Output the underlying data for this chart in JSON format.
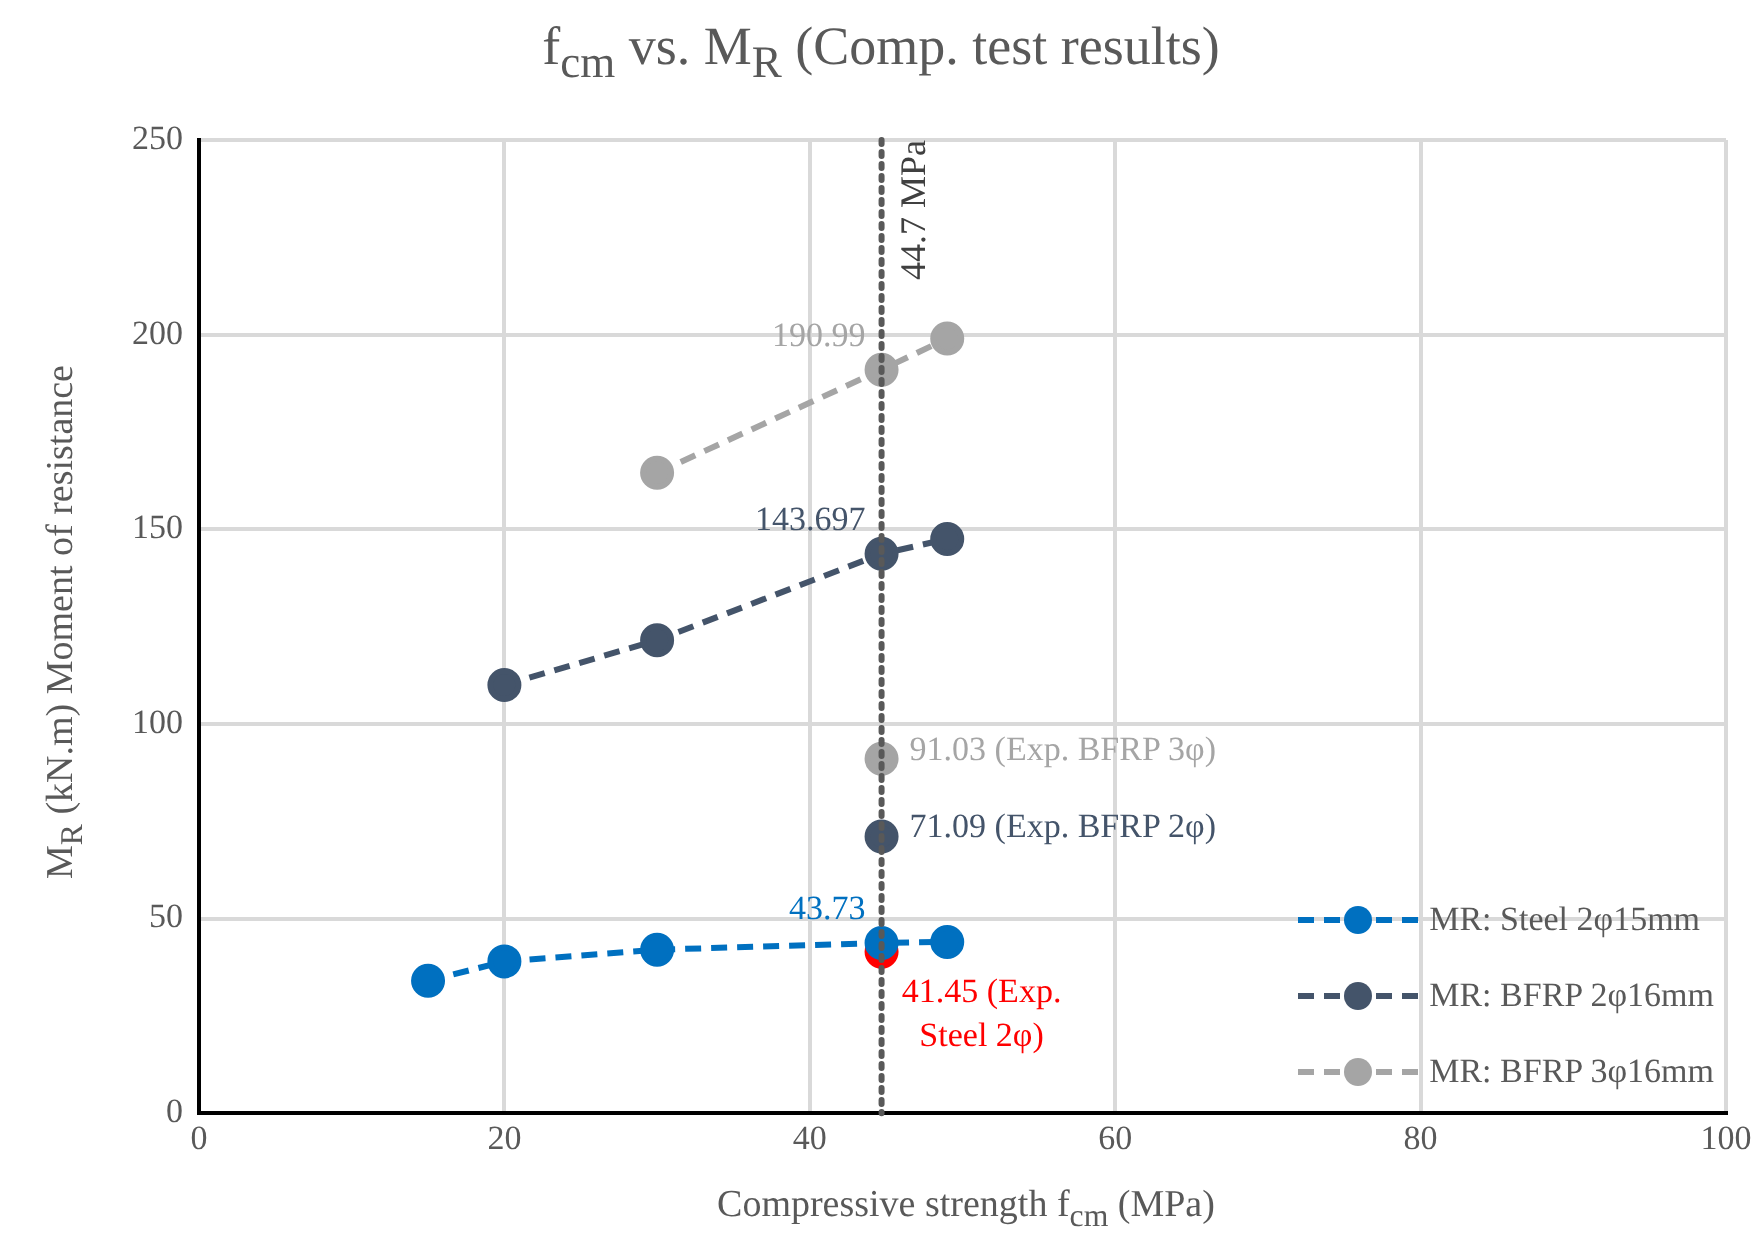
{
  "chart_data": {
    "type": "line",
    "title": "f$_{cm}$ vs. M$_{R}$ (Comp. test results)",
    "xlabel": "Compressive strength f$_{cm}$ (MPa)",
    "ylabel": "M$_{R}$ (kN.m) Moment of resistance",
    "xlim": [
      0,
      100
    ],
    "xticks": [
      0,
      20,
      40,
      60,
      80,
      100
    ],
    "ylim": [
      0,
      250
    ],
    "yticks": [
      0,
      50,
      100,
      150,
      200,
      250
    ],
    "grid": true,
    "legend": "bottom right",
    "marker": "circle",
    "line_style": "dashed",
    "series": [
      {
        "name": "MR: Steel 2φ15mm",
        "color": "#0070c0",
        "x": [
          15,
          20,
          30,
          44.7,
          49
        ],
        "values": [
          34,
          39,
          42,
          43.73,
          44
        ],
        "value_labels": [
          null,
          null,
          null,
          "43.73",
          null
        ]
      },
      {
        "name": "MR: BFRP 2φ16mm",
        "color": "#44546a",
        "x": [
          20,
          30,
          44.7,
          49
        ],
        "values": [
          110,
          121.5,
          143.697,
          147.5
        ],
        "value_labels": [
          null,
          null,
          "143.697",
          null
        ]
      },
      {
        "name": "MR: BFRP 3φ16mm",
        "color": "#a5a5a5",
        "x": [
          30,
          44.7,
          49
        ],
        "values": [
          164.5,
          190.99,
          199
        ],
        "value_labels": [
          null,
          "190.99",
          null
        ]
      },
      {
        "type": "scatter",
        "color": "#ff0000",
        "x": [
          44.7
        ],
        "values": [
          41.45
        ],
        "value_labels": [
          "41.45 (Exp. Steel 2φ)"
        ]
      },
      {
        "type": "scatter",
        "color": "#44546a",
        "x": [
          44.7
        ],
        "values": [
          71.09
        ],
        "value_labels": [
          "71.09 (Exp. BFRP 2φ)"
        ]
      },
      {
        "type": "scatter",
        "color": "#a5a5a5",
        "x": [
          44.7
        ],
        "values": [
          91.03
        ],
        "value_labels": [
          "91.03 (Exp. BFRP 3φ)"
        ]
      }
    ],
    "ref_lines": [
      {
        "axis": "x",
        "value": 44.7,
        "label": "44.7 MPa",
        "color": "#595959",
        "line_style": "dotted"
      }
    ]
  }
}
